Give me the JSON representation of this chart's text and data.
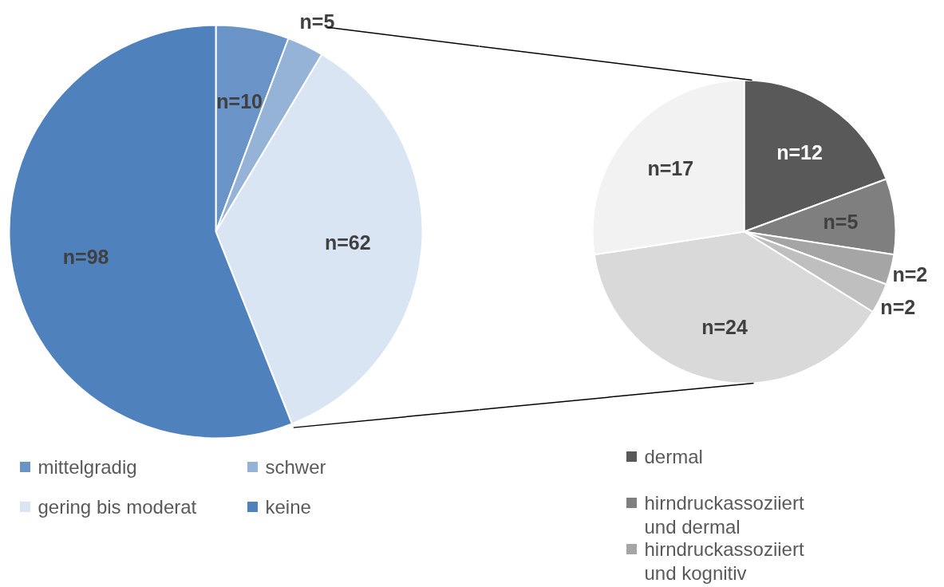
{
  "chart_data": [
    {
      "type": "pie",
      "categories": [
        "mittelgradig",
        "schwer",
        "gering bis moderat",
        "keine"
      ],
      "values": [
        10,
        5,
        62,
        98
      ],
      "colors": [
        "#6a93c8",
        "#95b3d7",
        "#dae5f4",
        "#4f81bd"
      ],
      "value_labels": [
        "n=10",
        "n=5",
        "n=62",
        "n=98"
      ],
      "legend": "bottom"
    },
    {
      "type": "pie",
      "categories": [
        "dermal",
        "hirndruckassoziiert und dermal",
        "hirndruckassoziiert und kognitiv",
        null,
        null,
        null
      ],
      "values": [
        12,
        5,
        2,
        2,
        24,
        17
      ],
      "colors": [
        "#595959",
        "#7f7f7f",
        "#a5a5a5",
        "#bfbfbf",
        "#d9d9d9",
        "#f2f2f2"
      ],
      "value_labels": [
        "n=12",
        "n=5",
        "n=2",
        "n=2",
        "n=24",
        "n=17"
      ],
      "legend": "bottom"
    }
  ]
}
